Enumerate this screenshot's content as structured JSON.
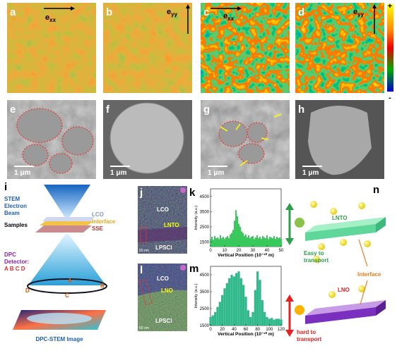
{
  "panel_labels": {
    "a": "a",
    "b": "b",
    "c": "c",
    "d": "d",
    "e": "e",
    "f": "f",
    "g": "g",
    "h": "h",
    "i": "i",
    "j": "j",
    "k": "k",
    "l": "l",
    "m": "m",
    "n": "n"
  },
  "strain": {
    "exx": {
      "base": "e",
      "sub": "xx"
    },
    "eyy": {
      "base": "e",
      "sub": "yy"
    }
  },
  "colorbar": {
    "max": "+",
    "min": "-"
  },
  "scale_bars": [
    "1 μm",
    "1 μm",
    "1 μm",
    "1 μm"
  ],
  "schematic": {
    "beam": [
      "STEM",
      "Electron",
      "Beam"
    ],
    "samples": "Samples",
    "layers": [
      "LCO",
      "Interface",
      "SSE"
    ],
    "detector": [
      "DPC",
      "Detector:",
      "A B C D"
    ],
    "segments": [
      "A",
      "B",
      "C",
      "D"
    ],
    "output": "DPC-STEM Image"
  },
  "image_j": {
    "top": "LCO",
    "interface": "LNTO",
    "bottom": "LPSCl",
    "scale": "50 nm"
  },
  "image_l": {
    "top": "LCO",
    "interface": "LNO",
    "bottom": "LPSCl",
    "scale": "50 nm"
  },
  "chart_data": [
    {
      "type": "area",
      "ylabel": "Intensity (a.u.)",
      "xlabel": "Vertical Position (10⁻¹⁰ m)",
      "color": "#35c85a",
      "x": [
        0,
        1,
        2,
        3,
        4,
        5,
        6,
        7,
        8,
        9,
        10,
        11,
        12,
        13,
        14,
        15,
        16,
        17,
        18,
        19,
        20,
        21,
        22,
        23,
        24,
        25,
        26,
        27,
        28,
        29,
        30,
        31,
        32,
        33,
        34,
        35,
        36,
        37,
        38,
        39,
        40,
        41,
        42,
        43,
        44,
        45,
        46,
        47,
        48,
        49,
        50
      ],
      "values": [
        1700,
        1850,
        1650,
        1900,
        1750,
        1800,
        1700,
        1950,
        1750,
        1850,
        1700,
        1800,
        1900,
        1750,
        2000,
        2100,
        2300,
        2900,
        3600,
        3200,
        2700,
        2500,
        2200,
        2100,
        1900,
        2000,
        1800,
        1950,
        1750,
        1850,
        1900,
        1700,
        1800,
        1950,
        1750,
        1850,
        1700,
        1900,
        1800,
        1750,
        1950,
        1700,
        1850,
        1800,
        1750,
        1900,
        1700,
        1850,
        1750,
        1800,
        1700
      ],
      "xlim": [
        0,
        50
      ],
      "xticks": [
        0,
        10,
        20,
        30,
        40,
        50
      ],
      "ylim": [
        1200,
        5000
      ],
      "yticks": [
        1500,
        2500,
        3500,
        4500
      ]
    },
    {
      "type": "area",
      "ylabel": "Intensity (a.u.)",
      "xlabel": "Vertical Position (10⁻¹⁰ m)",
      "color": "#2fb88a",
      "x": [
        0,
        4,
        8,
        12,
        16,
        20,
        24,
        28,
        32,
        36,
        40,
        44,
        48,
        52,
        56,
        60,
        64,
        68,
        72,
        76,
        80,
        84,
        88,
        92,
        96,
        100,
        104,
        108,
        112,
        116,
        120
      ],
      "values": [
        2000,
        2100,
        2300,
        2600,
        2900,
        3300,
        3700,
        4000,
        4300,
        4500,
        4400,
        4600,
        4700,
        4300,
        3900,
        3200,
        2400,
        2000,
        2300,
        3600,
        4700,
        4200,
        3000,
        2300,
        2000,
        1900,
        1950,
        1850,
        1900,
        1900,
        1850
      ],
      "xlim": [
        0,
        120
      ],
      "xticks": [
        0,
        20,
        40,
        60,
        80,
        100,
        120
      ],
      "ylim": [
        1500,
        5000
      ],
      "yticks": [
        1500,
        2500,
        3500,
        4500
      ]
    }
  ],
  "n": {
    "top": "LNTO",
    "easy": [
      "Easy to",
      "transport"
    ],
    "interface": "Interface",
    "bottom": "LNO",
    "hard": [
      "hard to",
      "transport"
    ]
  }
}
